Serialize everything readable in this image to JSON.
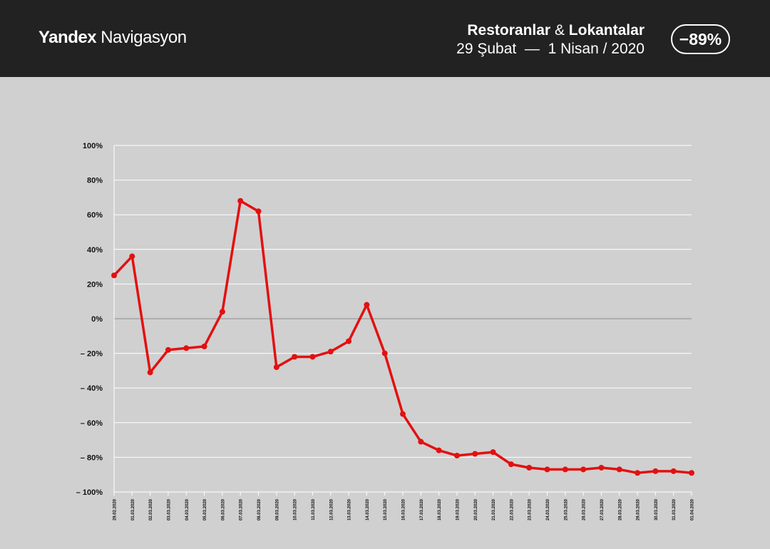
{
  "header": {
    "brand_bold": "Yandex",
    "brand_regular": "Navigasyon",
    "title_part1": "Restoranlar",
    "title_amp": "&",
    "title_part2": "Lokantalar",
    "subtitle": "29 Şubat  —  1 Nisan / 2020",
    "badge": "−89%"
  },
  "colors": {
    "header_bg": "#222222",
    "page_bg": "#d0d0d0",
    "line": "#e31010",
    "grid": "#ffffff",
    "zero_line": "#999999"
  },
  "chart_data": {
    "type": "line",
    "title": "",
    "xlabel": "",
    "ylabel": "",
    "ylim": [
      -100,
      100
    ],
    "grid": true,
    "yticks": [
      100,
      80,
      60,
      40,
      20,
      0,
      -20,
      -40,
      -60,
      -80,
      -100
    ],
    "ytick_labels": [
      "100%",
      "80%",
      "60%",
      "40%",
      "20%",
      "0%",
      "– 20%",
      "– 40%",
      "– 60%",
      "– 80%",
      "– 100%"
    ],
    "categories": [
      "29.02.2020",
      "01.03.2020",
      "02.03.2020",
      "03.03.2020",
      "04.03.2020",
      "05.03.2020",
      "06.03.2020",
      "07.03.2020",
      "08.03.2020",
      "09.03.2020",
      "10.03.2020",
      "11.03.2020",
      "12.03.2020",
      "13.03.2020",
      "14.03.2020",
      "15.03.2020",
      "16.03.2020",
      "17.03.2020",
      "18.03.2020",
      "19.03.2020",
      "20.03.2020",
      "21.03.2020",
      "22.03.2020",
      "23.03.2020",
      "24.03.2020",
      "25.03.2020",
      "26.03.2020",
      "27.03.2020",
      "28.03.2020",
      "29.03.2020",
      "30.03.2020",
      "31.03.2020",
      "01.04.2020"
    ],
    "series": [
      {
        "values": [
          25,
          36,
          -31,
          -18,
          -17,
          -16,
          4,
          68,
          62,
          -28,
          -22,
          -22,
          -19,
          -13,
          8,
          -20,
          -55,
          -71,
          -76,
          -79,
          -78,
          -77,
          -84,
          -86,
          -87,
          -87,
          -87,
          -86,
          -87,
          -89,
          -88,
          -88,
          -89
        ]
      }
    ]
  }
}
